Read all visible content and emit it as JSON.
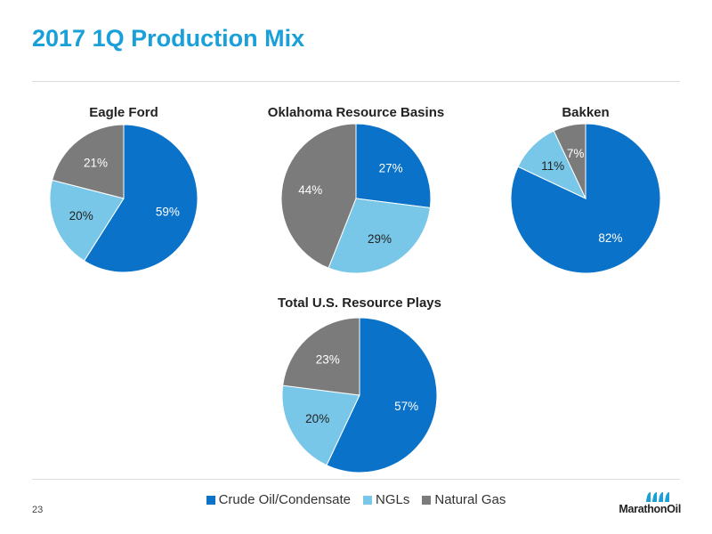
{
  "page": {
    "title": "2017 1Q Production Mix",
    "page_number": "23",
    "logo_text": "MarathonOil"
  },
  "colors": {
    "title": "#1aa0d8",
    "crude": "#0a73c9",
    "ngl": "#79c7e8",
    "gas": "#7b7b7b"
  },
  "chart_data": [
    {
      "type": "pie",
      "title": "Eagle Ford",
      "categories": [
        "Crude Oil/Condensate",
        "NGLs",
        "Natural Gas"
      ],
      "values": [
        59,
        20,
        21
      ],
      "labels": [
        "59%",
        "20%",
        "21%"
      ]
    },
    {
      "type": "pie",
      "title": "Oklahoma Resource Basins",
      "categories": [
        "Crude Oil/Condensate",
        "NGLs",
        "Natural Gas"
      ],
      "values": [
        27,
        29,
        44
      ],
      "labels": [
        "27%",
        "29%",
        "44%"
      ]
    },
    {
      "type": "pie",
      "title": "Bakken",
      "categories": [
        "Crude Oil/Condensate",
        "NGLs",
        "Natural Gas"
      ],
      "values": [
        82,
        11,
        7
      ],
      "labels": [
        "82%",
        "11%",
        "7%"
      ]
    },
    {
      "type": "pie",
      "title": "Total U.S. Resource Plays",
      "categories": [
        "Crude Oil/Condensate",
        "NGLs",
        "Natural Gas"
      ],
      "values": [
        57,
        20,
        23
      ],
      "labels": [
        "57%",
        "20%",
        "23%"
      ]
    }
  ],
  "legend": {
    "items": [
      {
        "label": "Crude Oil/Condensate",
        "color": "#0a73c9"
      },
      {
        "label": "NGLs",
        "color": "#79c7e8"
      },
      {
        "label": "Natural Gas",
        "color": "#7b7b7b"
      }
    ]
  }
}
